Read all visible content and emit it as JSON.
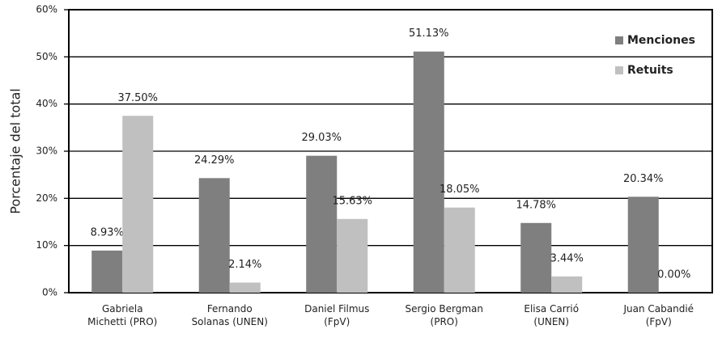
{
  "chart_data": {
    "type": "bar",
    "y_axis_label": "Porcentaje del total",
    "categories": [
      "Gabriela\nMichetti (PRO)",
      "Fernando\nSolanas (UNEN)",
      "Daniel Filmus\n(FpV)",
      "Sergio Bergman\n(PRO)",
      "Elisa Carrió\n(UNEN)",
      "Juan Cabandié\n(FpV)"
    ],
    "series": [
      {
        "name": "Menciones",
        "color": "#7f7f7f",
        "values": [
          8.93,
          24.29,
          29.03,
          51.13,
          14.78,
          20.34
        ],
        "value_labels": [
          "8.93%",
          "24.29%",
          "29.03%",
          "51.13%",
          "14.78%",
          "20.34%"
        ]
      },
      {
        "name": "Retuits",
        "color": "#c0c0c0",
        "values": [
          37.5,
          2.14,
          15.63,
          18.05,
          3.44,
          0
        ],
        "value_labels": [
          "37.50%",
          "2.14%",
          "15.63%",
          "18.05%",
          "3.44%",
          "0.00%"
        ]
      }
    ],
    "ylim": [
      0,
      60
    ],
    "yticks": [
      {
        "value": 0,
        "label": "0%"
      },
      {
        "value": 10,
        "label": "10%"
      },
      {
        "value": 20,
        "label": "20%"
      },
      {
        "value": 30,
        "label": "30%"
      },
      {
        "value": 40,
        "label": "40%"
      },
      {
        "value": 50,
        "label": "50%"
      },
      {
        "value": 60,
        "label": "60%"
      }
    ],
    "grid": true,
    "legend": "top-right"
  }
}
